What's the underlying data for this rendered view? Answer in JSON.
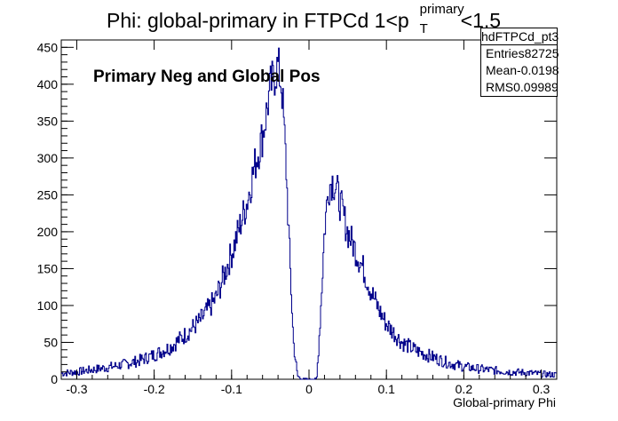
{
  "title": {
    "prefix": "Phi: global-primary in FTPCd 1<p",
    "sup": "primary",
    "sub": "T",
    "suffix": "<1.5"
  },
  "stats": {
    "name": "hdFTPCd_pt3",
    "rows": [
      {
        "label": "Entries",
        "value": "82725"
      },
      {
        "label": "Mean",
        "value": "-0.0198"
      },
      {
        "label": "RMS",
        "value": "0.09989"
      }
    ]
  },
  "annotation": "Primary Neg and Global Pos",
  "colors": {
    "histogram": "#00008b",
    "axes": "#000000"
  },
  "chart_data": {
    "type": "histogram",
    "xlabel": "Global-primary Phi",
    "ylabel": "",
    "xlim": [
      -0.32,
      0.32
    ],
    "ylim": [
      0,
      460
    ],
    "x_ticks": [
      -0.3,
      -0.2,
      -0.1,
      0,
      0.1,
      0.2,
      0.3
    ],
    "x_tick_labels": [
      "-0.3",
      "-0.2",
      "-0.1",
      "0",
      "0.1",
      "0.2",
      "0.3"
    ],
    "y_ticks": [
      0,
      50,
      100,
      150,
      200,
      250,
      300,
      350,
      400,
      450
    ],
    "y_tick_labels": [
      "0",
      "50",
      "100",
      "150",
      "200",
      "250",
      "300",
      "350",
      "400",
      "450"
    ],
    "series": [
      {
        "x": [
          -0.32,
          -0.3,
          -0.28,
          -0.26,
          -0.24,
          -0.22,
          -0.2,
          -0.18,
          -0.16,
          -0.14,
          -0.12,
          -0.1,
          -0.09,
          -0.08,
          -0.07,
          -0.06,
          -0.055,
          -0.05,
          -0.045,
          -0.04,
          -0.035,
          -0.03,
          -0.025,
          -0.02,
          -0.015,
          -0.01,
          -0.005,
          0.0,
          0.005,
          0.01,
          0.015,
          0.02,
          0.025,
          0.03,
          0.035,
          0.04,
          0.045,
          0.05,
          0.06,
          0.07,
          0.08,
          0.09,
          0.1,
          0.12,
          0.14,
          0.16,
          0.18,
          0.2,
          0.22,
          0.24,
          0.26,
          0.28,
          0.3,
          0.32
        ],
        "values": [
          8,
          10,
          13,
          16,
          20,
          25,
          33,
          43,
          60,
          80,
          110,
          170,
          205,
          240,
          290,
          330,
          360,
          395,
          410,
          425,
          395,
          300,
          170,
          50,
          5,
          0,
          0,
          0,
          0,
          0,
          90,
          200,
          260,
          270,
          260,
          240,
          220,
          200,
          175,
          150,
          120,
          95,
          75,
          50,
          38,
          30,
          22,
          17,
          14,
          12,
          10,
          9,
          7,
          6
        ]
      }
    ]
  }
}
